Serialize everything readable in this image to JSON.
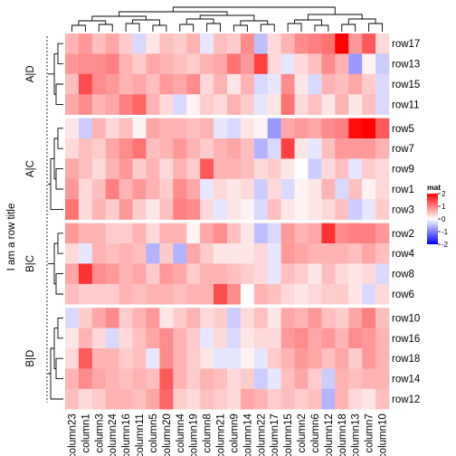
{
  "chart_data": {
    "type": "heatmap",
    "legend_title": "mat",
    "legend_ticks": [
      2,
      1,
      0,
      -1,
      -2
    ],
    "colors": {
      "low": "#0000ff",
      "mid": "#ffffff",
      "high": "#ff0000"
    },
    "row_title": "I am a row title",
    "columns": [
      "column23",
      "column1",
      "column3",
      "column24",
      "column16",
      "column11",
      "column5",
      "column20",
      "column4",
      "column19",
      "column8",
      "column21",
      "column9",
      "column14",
      "column22",
      "column17",
      "column15",
      "column2",
      "column6",
      "column12",
      "column18",
      "column13",
      "column7",
      "column10"
    ],
    "row_groups": [
      {
        "label": "A|D",
        "rows": [
          "row17",
          "row13",
          "row15",
          "row11"
        ]
      },
      {
        "label": "A|C",
        "rows": [
          "row5",
          "row7",
          "row9",
          "row1",
          "row3"
        ]
      },
      {
        "label": "B|C",
        "rows": [
          "row2",
          "row4",
          "row8",
          "row6"
        ]
      },
      {
        "label": "B|D",
        "rows": [
          "row10",
          "row16",
          "row18",
          "row14",
          "row12"
        ]
      }
    ],
    "values": {
      "row17": [
        0.6,
        0.8,
        0.5,
        0.7,
        0.4,
        -0.3,
        0.2,
        0.5,
        0.4,
        0.6,
        -0.2,
        0.5,
        0.4,
        0.9,
        -0.5,
        0.3,
        0.6,
        0.9,
        1.0,
        1.1,
        2.0,
        0.8,
        1.3,
        0.3
      ],
      "row13": [
        0.8,
        0.9,
        0.9,
        1.0,
        0.6,
        0.4,
        0.7,
        0.6,
        0.5,
        0.4,
        0.6,
        0.7,
        1.1,
        0.8,
        1.5,
        0.3,
        -0.2,
        0.3,
        0.5,
        0.9,
        0.6,
        -0.8,
        0.1,
        -0.4
      ],
      "row15": [
        0.5,
        1.4,
        0.9,
        0.8,
        0.6,
        0.7,
        0.5,
        0.8,
        0.7,
        0.9,
        0.3,
        0.6,
        0.2,
        0.6,
        -0.3,
        -0.2,
        0.9,
        0.2,
        -0.3,
        0.6,
        0.5,
        0.7,
        0.4,
        -0.3
      ],
      "row11": [
        0.7,
        0.9,
        0.6,
        0.7,
        1.0,
        1.2,
        0.6,
        0.3,
        -0.3,
        0.1,
        0.4,
        0.3,
        0.6,
        0.4,
        -0.2,
        0.2,
        1.1,
        0.3,
        0.5,
        0.2,
        0.6,
        0.2,
        0.5,
        -0.3
      ],
      "row5": [
        0.2,
        -0.4,
        0.6,
        0.3,
        0.5,
        0.1,
        0.7,
        0.6,
        0.6,
        0.5,
        0.6,
        -0.2,
        -0.3,
        0.2,
        0.1,
        -0.8,
        0.7,
        0.8,
        0.7,
        0.9,
        1.0,
        1.9,
        2.0,
        1.3
      ],
      "row7": [
        0.3,
        0.5,
        0.4,
        0.7,
        0.9,
        1.1,
        0.5,
        0.6,
        0.8,
        0.6,
        0.4,
        0.6,
        0.7,
        0.5,
        -0.6,
        -0.3,
        1.5,
        0.2,
        -0.2,
        0.5,
        0.8,
        0.8,
        0.8,
        0.6
      ],
      "row9": [
        0.7,
        0.5,
        0.3,
        0.6,
        0.8,
        0.4,
        0.6,
        0.3,
        0.6,
        0.4,
        1.3,
        0.6,
        0.6,
        0.5,
        0.3,
        0.4,
        0.2,
        0.0,
        -0.4,
        0.3,
        0.5,
        -0.2,
        0.4,
        0.3
      ],
      "row1": [
        0.8,
        0.3,
        0.5,
        1.0,
        0.6,
        0.8,
        0.6,
        0.4,
        0.9,
        0.7,
        -0.2,
        0.3,
        0.2,
        0.3,
        -0.4,
        0.3,
        -0.3,
        0.1,
        0.2,
        0.6,
        -0.3,
        0.5,
        0.1,
        0.3
      ],
      "row3": [
        1.1,
        0.3,
        0.6,
        0.4,
        0.8,
        0.4,
        0.2,
        0.5,
        1.0,
        0.9,
        0.3,
        -0.2,
        0.2,
        0.1,
        -0.3,
        0.5,
        0.2,
        0.1,
        0.2,
        0.3,
        0.5,
        -0.4,
        -0.2,
        0.4
      ],
      "row2": [
        0.8,
        0.6,
        0.6,
        0.4,
        0.4,
        0.6,
        0.3,
        0.6,
        0.6,
        0.1,
        0.7,
        0.9,
        0.5,
        0.2,
        -0.5,
        -0.3,
        0.8,
        0.6,
        0.7,
        1.6,
        0.9,
        1.0,
        1.0,
        0.8
      ],
      "row4": [
        0.3,
        -0.2,
        0.6,
        0.5,
        0.6,
        0.5,
        -0.6,
        0.4,
        -0.6,
        0.7,
        0.4,
        0.2,
        0.2,
        0.2,
        0.3,
        -0.2,
        0.8,
        0.7,
        0.6,
        0.6,
        0.6,
        0.5,
        0.7,
        0.5
      ],
      "row8": [
        0.7,
        1.6,
        0.9,
        0.8,
        0.6,
        0.7,
        0.4,
        0.8,
        0.7,
        0.4,
        0.6,
        0.6,
        0.5,
        0.4,
        0.3,
        -0.2,
        0.5,
        0.4,
        0.2,
        0.5,
        0.3,
        0.2,
        0.3,
        -0.3
      ],
      "row6": [
        0.5,
        0.4,
        0.4,
        0.4,
        0.6,
        0.5,
        0.6,
        0.6,
        0.5,
        0.6,
        0.6,
        1.4,
        0.9,
        0.0,
        0.6,
        0.5,
        0.3,
        0.2,
        0.3,
        0.4,
        0.4,
        0.2,
        -0.3,
        0.3
      ],
      "row10": [
        -0.3,
        0.4,
        0.7,
        0.9,
        0.4,
        0.6,
        0.8,
        0.2,
        0.4,
        0.6,
        0.3,
        0.4,
        -0.4,
        0.3,
        0.5,
        0.2,
        0.7,
        0.6,
        0.8,
        0.5,
        0.4,
        0.7,
        1.0,
        0.5
      ],
      "row16": [
        0.2,
        0.6,
        0.3,
        -0.3,
        0.3,
        0.5,
        0.7,
        0.9,
        0.6,
        0.4,
        -0.2,
        0.3,
        -0.3,
        0.2,
        0.3,
        0.3,
        0.8,
        0.9,
        0.7,
        0.8,
        0.6,
        0.9,
        0.8,
        0.6
      ],
      "row18": [
        0.3,
        1.3,
        0.6,
        0.6,
        0.4,
        0.5,
        -0.2,
        0.9,
        0.6,
        0.4,
        0.2,
        -0.2,
        -0.2,
        0.1,
        -0.2,
        0.4,
        0.6,
        0.8,
        0.7,
        0.5,
        0.7,
        0.4,
        0.8,
        0.6
      ],
      "row14": [
        0.6,
        0.9,
        0.7,
        0.6,
        0.5,
        0.6,
        0.5,
        1.3,
        0.6,
        0.4,
        0.6,
        0.5,
        0.3,
        0.4,
        -0.4,
        -0.2,
        0.5,
        0.7,
        0.4,
        -0.4,
        0.6,
        0.5,
        0.6,
        0.6
      ],
      "row12": [
        0.5,
        0.3,
        0.4,
        0.6,
        0.6,
        0.5,
        0.7,
        1.2,
        0.4,
        0.3,
        0.5,
        0.4,
        0.3,
        0.7,
        0.6,
        0.4,
        0.5,
        0.4,
        0.5,
        -0.6,
        0.6,
        0.3,
        0.2,
        0.5
      ]
    }
  }
}
